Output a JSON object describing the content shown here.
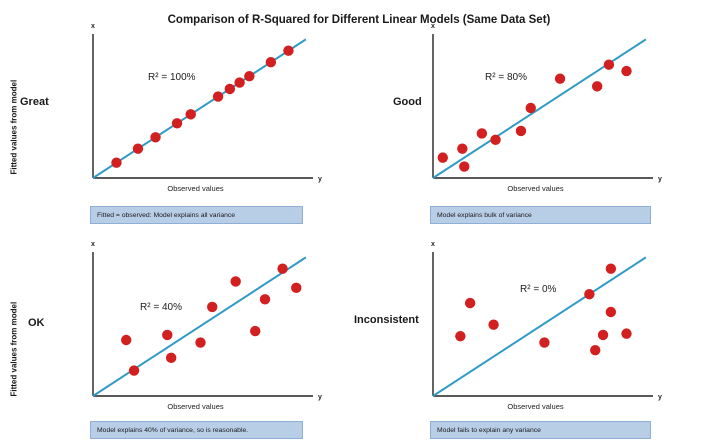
{
  "title": "Comparison of R-Squared for Different Linear Models (Same Data Set)",
  "y_axis_label": "Fitted values from model",
  "colors": {
    "point": "#d21f1f",
    "line": "#2f9bc6",
    "axis": "#222222",
    "caption_bg": "#b8cde6"
  },
  "chart_data": [
    {
      "type": "scatter",
      "panel": "top-left",
      "quality_label": "Great",
      "r2_label": "R² = 100%",
      "xlabel": "Observed values",
      "axis_end_x": "y",
      "axis_end_y": "x",
      "caption": "Fitted = observed: Model explains all variance",
      "fit_line": true,
      "points": [
        [
          1.2,
          1.2
        ],
        [
          2.3,
          2.3
        ],
        [
          3.2,
          3.2
        ],
        [
          4.3,
          4.3
        ],
        [
          5.0,
          5.0
        ],
        [
          6.4,
          6.4
        ],
        [
          7.0,
          7.0
        ],
        [
          7.5,
          7.5
        ],
        [
          8.0,
          8.0
        ],
        [
          9.1,
          9.1
        ],
        [
          10.0,
          10.0
        ]
      ]
    },
    {
      "type": "scatter",
      "panel": "top-right",
      "quality_label": "Good",
      "r2_label": "R² = 80%",
      "xlabel": "Observed values",
      "axis_end_x": "y",
      "axis_end_y": "x",
      "caption": "Model explains bulk of variance",
      "fit_line": true,
      "points": [
        [
          0.5,
          1.6
        ],
        [
          1.5,
          2.3
        ],
        [
          1.6,
          0.9
        ],
        [
          2.5,
          3.5
        ],
        [
          3.2,
          3.0
        ],
        [
          4.5,
          3.7
        ],
        [
          5.0,
          5.5
        ],
        [
          6.5,
          7.8
        ],
        [
          8.4,
          7.2
        ],
        [
          9.0,
          8.9
        ],
        [
          9.9,
          8.4
        ]
      ]
    },
    {
      "type": "scatter",
      "panel": "bottom-left",
      "quality_label": "OK",
      "r2_label": "R² = 40%",
      "xlabel": "Observed values",
      "axis_end_x": "y",
      "axis_end_y": "x",
      "caption": "Model explains 40% of variance, so is reasonable.",
      "fit_line": true,
      "points": [
        [
          1.7,
          4.4
        ],
        [
          2.1,
          2.0
        ],
        [
          3.8,
          4.8
        ],
        [
          4.0,
          3.0
        ],
        [
          5.5,
          4.2
        ],
        [
          6.1,
          7.0
        ],
        [
          7.3,
          9.0
        ],
        [
          8.3,
          5.1
        ],
        [
          8.8,
          7.6
        ],
        [
          9.7,
          10.0
        ],
        [
          10.4,
          8.5
        ]
      ]
    },
    {
      "type": "scatter",
      "panel": "bottom-right",
      "quality_label": "Inconsistent",
      "r2_label": "R² = 0%",
      "xlabel": "Observed values",
      "axis_end_x": "y",
      "axis_end_y": "x",
      "caption": "Model fails to explain any variance",
      "fit_line": true,
      "points": [
        [
          1.4,
          4.7
        ],
        [
          1.9,
          7.3
        ],
        [
          3.1,
          5.6
        ],
        [
          5.7,
          4.2
        ],
        [
          8.0,
          8.0
        ],
        [
          8.3,
          3.6
        ],
        [
          8.7,
          4.8
        ],
        [
          9.1,
          10.0
        ],
        [
          9.1,
          6.6
        ],
        [
          9.9,
          4.9
        ]
      ]
    }
  ]
}
